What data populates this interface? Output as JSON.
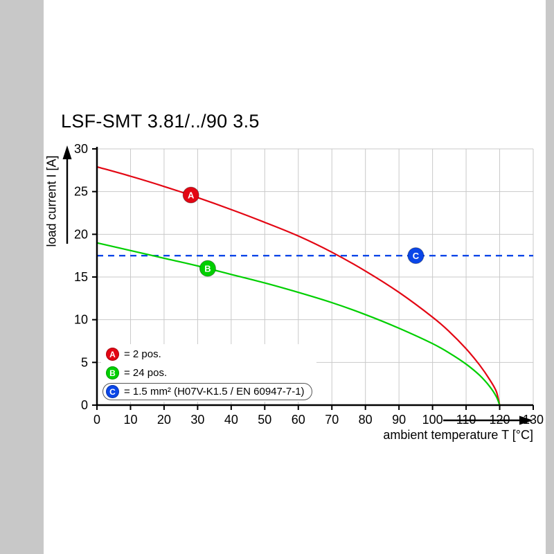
{
  "chart_data": {
    "type": "line",
    "title": "LSF-SMT 3.81/../90 3.5",
    "xlabel": "ambient temperature T [°C]",
    "ylabel": "load current I [A]",
    "xlim": [
      0,
      130
    ],
    "ylim": [
      0,
      30
    ],
    "x_ticks": [
      0,
      10,
      20,
      30,
      40,
      50,
      60,
      70,
      80,
      90,
      100,
      110,
      120,
      130
    ],
    "y_ticks": [
      0,
      5,
      10,
      15,
      20,
      25,
      30
    ],
    "grid": true,
    "legend_position": "inside-bottom-left",
    "style": {
      "grid_color": "#c9c9c9",
      "axis_color": "#000000",
      "background": "#ffffff"
    },
    "series": [
      {
        "name": "A",
        "legend_label": "= 2 pos.",
        "type": "curve",
        "color": "#e30613",
        "points": [
          [
            0,
            27.9
          ],
          [
            10,
            26.8
          ],
          [
            20,
            25.6
          ],
          [
            30,
            24.3
          ],
          [
            40,
            22.9
          ],
          [
            50,
            21.4
          ],
          [
            60,
            19.8
          ],
          [
            70,
            17.9
          ],
          [
            80,
            15.7
          ],
          [
            90,
            13.2
          ],
          [
            100,
            10.3
          ],
          [
            105,
            8.6
          ],
          [
            110,
            6.6
          ],
          [
            114,
            4.7
          ],
          [
            117,
            3.0
          ],
          [
            119,
            1.6
          ],
          [
            120,
            0
          ]
        ],
        "marker": {
          "x": 28,
          "y": 24.6
        }
      },
      {
        "name": "B",
        "legend_label": "= 24 pos.",
        "type": "curve",
        "color": "#00cf00",
        "points": [
          [
            0,
            19.0
          ],
          [
            10,
            18.1
          ],
          [
            20,
            17.2
          ],
          [
            30,
            16.3
          ],
          [
            40,
            15.3
          ],
          [
            50,
            14.3
          ],
          [
            60,
            13.2
          ],
          [
            70,
            12.0
          ],
          [
            80,
            10.6
          ],
          [
            90,
            9.0
          ],
          [
            100,
            7.2
          ],
          [
            105,
            6.1
          ],
          [
            110,
            4.8
          ],
          [
            114,
            3.5
          ],
          [
            117,
            2.2
          ],
          [
            119,
            1.0
          ],
          [
            120,
            0
          ]
        ],
        "marker": {
          "x": 33,
          "y": 16.0
        }
      },
      {
        "name": "C",
        "legend_label": "= 1.5 mm² (H07V-K1.5 / EN 60947-7-1)",
        "type": "hline",
        "value": 17.5,
        "dashed": true,
        "boxed": true,
        "color": "#0a46e8",
        "marker": {
          "x": 95,
          "y": 17.5
        }
      }
    ]
  }
}
